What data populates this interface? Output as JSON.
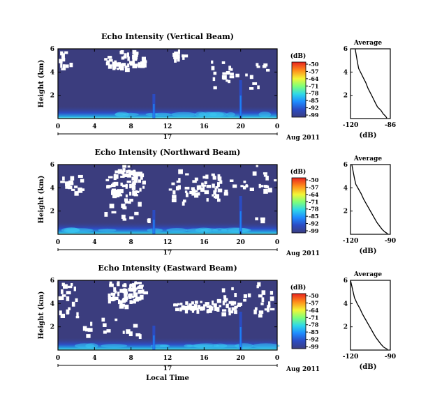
{
  "chart_data": [
    {
      "type": "heatmap",
      "title": "Echo Intensity (Vertical Beam)",
      "ylabel": "Height (km)",
      "xticks": [
        "0",
        "4",
        "8",
        "12",
        "16",
        "20",
        "0"
      ],
      "yticks": [
        "6",
        "4",
        "2"
      ],
      "xlim": [
        0,
        24
      ],
      "ylim": [
        0,
        6
      ],
      "date_label": "17",
      "month_label": "Aug 2011",
      "colorbar": {
        "unit": "(dB)",
        "ticks": [
          "-50",
          "-57",
          "-64",
          "-71",
          "-78",
          "-85",
          "-92",
          "-99"
        ],
        "range": [
          -99,
          -50
        ]
      },
      "background_level": -92,
      "near_ground_max": -70,
      "white_gaps": "upper",
      "profile": {
        "title": "Average",
        "xlabel": "(dB)",
        "xticks": [
          "-120",
          "-86"
        ],
        "xlim": [
          -120,
          -86
        ],
        "yticks": [
          "6",
          "4",
          "2"
        ],
        "ylim": [
          0,
          6
        ],
        "x": [
          -116,
          -115,
          -114,
          -113,
          -111,
          -109,
          -107,
          -105,
          -103,
          -101,
          -99,
          -97,
          -94,
          -92,
          -90,
          -89
        ],
        "y": [
          6.0,
          5.4,
          4.8,
          4.3,
          3.9,
          3.5,
          3.1,
          2.6,
          2.2,
          1.8,
          1.4,
          1.0,
          0.7,
          0.4,
          0.2,
          0.05
        ]
      }
    },
    {
      "type": "heatmap",
      "title": "Echo Intensity (Northward Beam)",
      "ylabel": "Height (km)",
      "xticks": [
        "0",
        "4",
        "8",
        "12",
        "16",
        "20",
        "0"
      ],
      "yticks": [
        "6",
        "4",
        "2"
      ],
      "xlim": [
        0,
        24
      ],
      "ylim": [
        0,
        6
      ],
      "date_label": "17",
      "month_label": "Aug 2011",
      "colorbar": {
        "unit": "(dB)",
        "ticks": [
          "-50",
          "-57",
          "-64",
          "-71",
          "-78",
          "-85",
          "-92",
          "-99"
        ],
        "range": [
          -99,
          -50
        ]
      },
      "background_level": -92,
      "near_ground_max": -72,
      "white_gaps": "mid",
      "profile": {
        "title": "Average",
        "xlabel": "(dB)",
        "xticks": [
          "-120",
          "-90"
        ],
        "xlim": [
          -120,
          -90
        ],
        "yticks": [
          "6",
          "4",
          "2"
        ],
        "ylim": [
          0,
          6
        ],
        "x": [
          -119,
          -118,
          -117,
          -116,
          -114,
          -112,
          -110,
          -108,
          -106,
          -104,
          -102,
          -100,
          -98,
          -96,
          -94,
          -92
        ],
        "y": [
          6.0,
          5.4,
          4.8,
          4.3,
          3.9,
          3.5,
          3.0,
          2.6,
          2.2,
          1.8,
          1.4,
          1.0,
          0.7,
          0.4,
          0.2,
          0.05
        ]
      }
    },
    {
      "type": "heatmap",
      "title": "Echo Intensity (Eastward Beam)",
      "ylabel": "Height (km)",
      "xlabel": "Local Time",
      "xticks": [
        "0",
        "4",
        "8",
        "12",
        "16",
        "20",
        "0"
      ],
      "yticks": [
        "6",
        "4",
        "2"
      ],
      "xlim": [
        0,
        24
      ],
      "ylim": [
        0,
        6
      ],
      "date_label": "17",
      "month_label": "Aug 2011",
      "colorbar": {
        "unit": "(dB)",
        "ticks": [
          "-50",
          "-57",
          "-64",
          "-71",
          "-78",
          "-85",
          "-92",
          "-99"
        ],
        "range": [
          -99,
          -50
        ]
      },
      "background_level": -92,
      "near_ground_max": -72,
      "white_gaps": "arc",
      "profile": {
        "title": "Average",
        "xlabel": "(dB)",
        "xticks": [
          "-120",
          "-90"
        ],
        "xlim": [
          -120,
          -90
        ],
        "yticks": [
          "6",
          "4",
          "2"
        ],
        "ylim": [
          0,
          6
        ],
        "x": [
          -120,
          -119,
          -118,
          -117,
          -115,
          -113,
          -111,
          -109,
          -107,
          -105,
          -103,
          -101,
          -99,
          -97,
          -95,
          -92
        ],
        "y": [
          6.0,
          5.5,
          5.0,
          4.5,
          4.0,
          3.6,
          3.1,
          2.7,
          2.3,
          1.9,
          1.5,
          1.1,
          0.8,
          0.5,
          0.25,
          0.05
        ]
      }
    }
  ]
}
